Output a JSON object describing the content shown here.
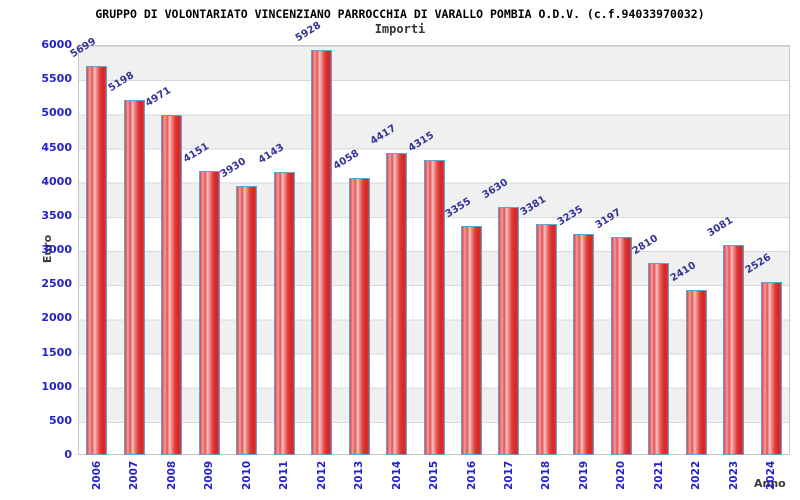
{
  "chart_data": {
    "type": "bar",
    "title": "GRUPPO DI VOLONTARIATO VINCENZIANO PARROCCHIA DI VARALLO POMBIA O.D.V. (c.f.94033970032)",
    "subtitle": "Importi",
    "xlabel": "Anno",
    "ylabel": "Euro",
    "categories": [
      "2006",
      "2007",
      "2008",
      "2009",
      "2010",
      "2011",
      "2012",
      "2013",
      "2014",
      "2015",
      "2016",
      "2017",
      "2018",
      "2019",
      "2020",
      "2021",
      "2022",
      "2023",
      "2024"
    ],
    "values": [
      5699,
      5198,
      4971,
      4151,
      3930,
      4143,
      5928,
      4058,
      4417,
      4315,
      3355,
      3630,
      3381,
      3235,
      3197,
      2810,
      2410,
      3081,
      2526
    ],
    "ylim": [
      0,
      6000
    ],
    "ytick_step": 500,
    "grid": "horizontal-bands-alternating",
    "legend": "none",
    "value_labels": "above-bars-rotated",
    "colors": {
      "bar_fill_main": "#e04040",
      "bar_fill_highlight": "#f8c3c3",
      "bar_border": "#62a0d8",
      "value_label": "#333399",
      "tick_label": "#2222cc",
      "axis_title": "#3a3a3a",
      "band_gray": "#f0f0f0",
      "band_white": "#ffffff",
      "gridline": "#d8d8d8",
      "background": "#ffffff"
    }
  }
}
